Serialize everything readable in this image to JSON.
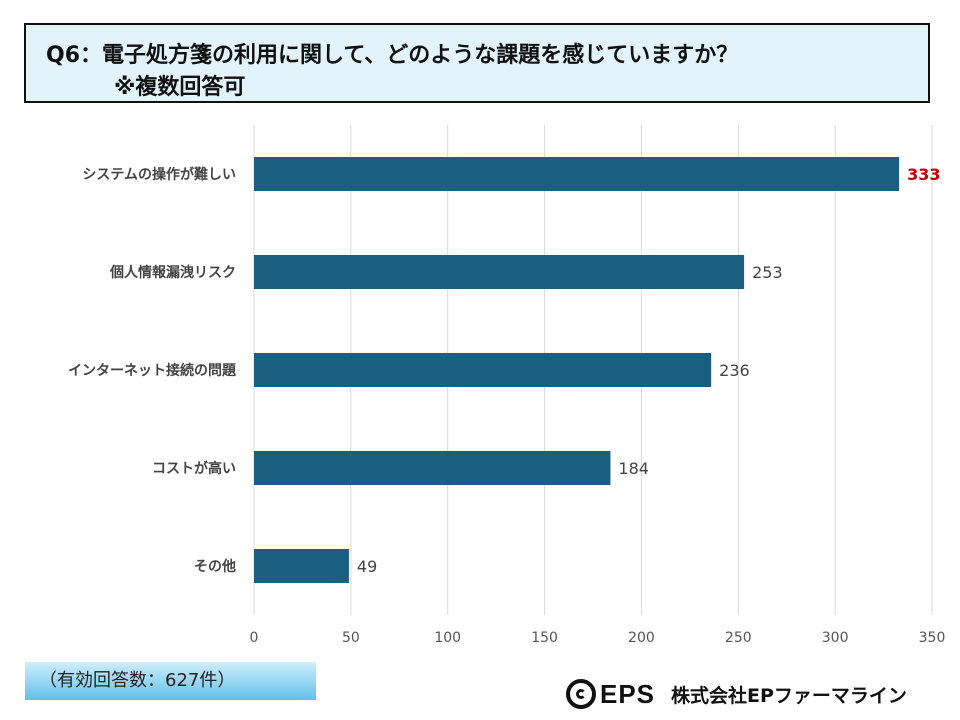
{
  "header": {
    "title_line1": "Q6：電子処方箋の利用に関して、どのような課題を感じていますか？",
    "title_line2": "※複数回答可"
  },
  "chart_data": {
    "type": "bar",
    "orientation": "horizontal",
    "categories": [
      "システムの操作が難しい",
      "個人情報漏洩リスク",
      "インターネット接続の問題",
      "コストが高い",
      "その他"
    ],
    "values": [
      333,
      253,
      236,
      184,
      49
    ],
    "highlight_index": 0,
    "xlim": [
      0,
      350
    ],
    "xticks": [
      0,
      50,
      100,
      150,
      200,
      250,
      300,
      350
    ],
    "grid": true,
    "bar_color": "#1a5e80",
    "highlight_color": "#c00000"
  },
  "footer": {
    "note": "（有効回答数：627件）",
    "logo_text": "EPS",
    "company": "株式会社EPファーマライン"
  }
}
